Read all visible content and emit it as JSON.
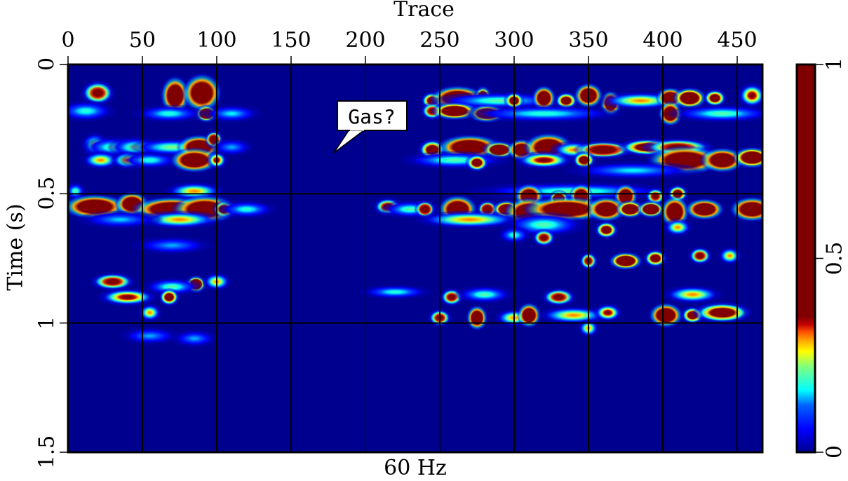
{
  "chart_data": {
    "type": "heatmap",
    "title": "Trace",
    "subtitle": "60 Hz",
    "xlabel": "Trace",
    "ylabel": "Time (s)",
    "xlim": [
      0,
      470
    ],
    "ylim": [
      0,
      1.5
    ],
    "x_ticks": [
      "0",
      "50",
      "100",
      "150",
      "200",
      "250",
      "300",
      "350",
      "400",
      "450"
    ],
    "y_ticks": [
      "0",
      "0.5",
      "1",
      "1.5"
    ],
    "grid": true,
    "colorbar": {
      "range": [
        0,
        1
      ],
      "ticks": [
        "0",
        "0.5",
        "1"
      ],
      "colormap": "jet (clipped ~0.35)",
      "stops": [
        {
          "pos": 0.0,
          "color": "#00008f"
        },
        {
          "pos": 0.06,
          "color": "#0000ff"
        },
        {
          "pos": 0.12,
          "color": "#0060ff"
        },
        {
          "pos": 0.16,
          "color": "#00ffff"
        },
        {
          "pos": 0.22,
          "color": "#7fff7f"
        },
        {
          "pos": 0.26,
          "color": "#ffff00"
        },
        {
          "pos": 0.29,
          "color": "#ffa000"
        },
        {
          "pos": 0.31,
          "color": "#ff5000"
        },
        {
          "pos": 0.33,
          "color": "#c00000"
        },
        {
          "pos": 0.35,
          "color": "#800000"
        },
        {
          "pos": 1.0,
          "color": "#800000"
        }
      ]
    },
    "annotation": {
      "text": "Gas?",
      "x_trace": 180,
      "time_s": 0.33
    },
    "blobs": [
      {
        "x": 20,
        "t": 0.11,
        "w": 10,
        "h": 0.03,
        "v": 0.5
      },
      {
        "x": 12,
        "t": 0.18,
        "w": 20,
        "h": 0.025,
        "v": 0.18
      },
      {
        "x": 18,
        "t": 0.31,
        "w": 8,
        "h": 0.03,
        "v": 0.25
      },
      {
        "x": 30,
        "t": 0.32,
        "w": 20,
        "h": 0.025,
        "v": 0.2
      },
      {
        "x": 45,
        "t": 0.32,
        "w": 18,
        "h": 0.025,
        "v": 0.22
      },
      {
        "x": 22,
        "t": 0.37,
        "w": 12,
        "h": 0.02,
        "v": 0.3
      },
      {
        "x": 40,
        "t": 0.37,
        "w": 10,
        "h": 0.02,
        "v": 0.32
      },
      {
        "x": 55,
        "t": 0.37,
        "w": 20,
        "h": 0.02,
        "v": 0.18
      },
      {
        "x": 72,
        "t": 0.12,
        "w": 8,
        "h": 0.05,
        "v": 1
      },
      {
        "x": 90,
        "t": 0.11,
        "w": 12,
        "h": 0.05,
        "v": 1
      },
      {
        "x": 93,
        "t": 0.19,
        "w": 6,
        "h": 0.02,
        "v": 0.8
      },
      {
        "x": 68,
        "t": 0.19,
        "w": 25,
        "h": 0.02,
        "v": 0.18
      },
      {
        "x": 110,
        "t": 0.19,
        "w": 20,
        "h": 0.02,
        "v": 0.16
      },
      {
        "x": 70,
        "t": 0.32,
        "w": 30,
        "h": 0.02,
        "v": 0.22
      },
      {
        "x": 88,
        "t": 0.32,
        "w": 14,
        "h": 0.03,
        "v": 1
      },
      {
        "x": 98,
        "t": 0.29,
        "w": 4,
        "h": 0.02,
        "v": 0.7
      },
      {
        "x": 85,
        "t": 0.37,
        "w": 16,
        "h": 0.03,
        "v": 1
      },
      {
        "x": 100,
        "t": 0.37,
        "w": 5,
        "h": 0.02,
        "v": 0.4
      },
      {
        "x": 110,
        "t": 0.32,
        "w": 14,
        "h": 0.02,
        "v": 0.14
      },
      {
        "x": 85,
        "t": 0.49,
        "w": 20,
        "h": 0.02,
        "v": 0.3
      },
      {
        "x": 5,
        "t": 0.49,
        "w": 5,
        "h": 0.02,
        "v": 0.2
      },
      {
        "x": 18,
        "t": 0.55,
        "w": 22,
        "h": 0.03,
        "v": 1
      },
      {
        "x": 43,
        "t": 0.54,
        "w": 10,
        "h": 0.03,
        "v": 1
      },
      {
        "x": 70,
        "t": 0.56,
        "w": 28,
        "h": 0.03,
        "v": 1
      },
      {
        "x": 92,
        "t": 0.56,
        "w": 22,
        "h": 0.035,
        "v": 1
      },
      {
        "x": 105,
        "t": 0.56,
        "w": 6,
        "h": 0.02,
        "v": 0.6
      },
      {
        "x": 120,
        "t": 0.56,
        "w": 20,
        "h": 0.02,
        "v": 0.18
      },
      {
        "x": 75,
        "t": 0.6,
        "w": 30,
        "h": 0.02,
        "v": 0.3
      },
      {
        "x": 35,
        "t": 0.6,
        "w": 30,
        "h": 0.02,
        "v": 0.15
      },
      {
        "x": 70,
        "t": 0.7,
        "w": 28,
        "h": 0.02,
        "v": 0.14
      },
      {
        "x": 30,
        "t": 0.84,
        "w": 14,
        "h": 0.02,
        "v": 0.5
      },
      {
        "x": 40,
        "t": 0.9,
        "w": 20,
        "h": 0.02,
        "v": 0.4
      },
      {
        "x": 86,
        "t": 0.85,
        "w": 5,
        "h": 0.02,
        "v": 0.8
      },
      {
        "x": 70,
        "t": 0.86,
        "w": 20,
        "h": 0.02,
        "v": 0.2
      },
      {
        "x": 68,
        "t": 0.9,
        "w": 5,
        "h": 0.02,
        "v": 0.6
      },
      {
        "x": 100,
        "t": 0.84,
        "w": 8,
        "h": 0.02,
        "v": 0.3
      },
      {
        "x": 55,
        "t": 0.96,
        "w": 6,
        "h": 0.02,
        "v": 0.3
      },
      {
        "x": 55,
        "t": 1.05,
        "w": 20,
        "h": 0.02,
        "v": 0.14
      },
      {
        "x": 85,
        "t": 1.06,
        "w": 15,
        "h": 0.02,
        "v": 0.14
      },
      {
        "x": 215,
        "t": 0.55,
        "w": 8,
        "h": 0.02,
        "v": 0.5
      },
      {
        "x": 230,
        "t": 0.56,
        "w": 20,
        "h": 0.02,
        "v": 0.2
      },
      {
        "x": 220,
        "t": 0.88,
        "w": 25,
        "h": 0.015,
        "v": 0.18
      },
      {
        "x": 245,
        "t": 0.14,
        "w": 6,
        "h": 0.02,
        "v": 0.6
      },
      {
        "x": 262,
        "t": 0.13,
        "w": 18,
        "h": 0.03,
        "v": 1
      },
      {
        "x": 279,
        "t": 0.13,
        "w": 4,
        "h": 0.03,
        "v": 0.8
      },
      {
        "x": 282,
        "t": 0.15,
        "w": 5,
        "h": 0.02,
        "v": 0.9
      },
      {
        "x": 290,
        "t": 0.14,
        "w": 50,
        "h": 0.02,
        "v": 0.2
      },
      {
        "x": 300,
        "t": 0.14,
        "w": 5,
        "h": 0.02,
        "v": 0.6
      },
      {
        "x": 320,
        "t": 0.13,
        "w": 6,
        "h": 0.03,
        "v": 1
      },
      {
        "x": 335,
        "t": 0.14,
        "w": 6,
        "h": 0.02,
        "v": 0.6
      },
      {
        "x": 350,
        "t": 0.12,
        "w": 8,
        "h": 0.03,
        "v": 1
      },
      {
        "x": 365,
        "t": 0.15,
        "w": 5,
        "h": 0.03,
        "v": 1
      },
      {
        "x": 385,
        "t": 0.14,
        "w": 30,
        "h": 0.02,
        "v": 0.3
      },
      {
        "x": 405,
        "t": 0.13,
        "w": 8,
        "h": 0.025,
        "v": 1
      },
      {
        "x": 418,
        "t": 0.13,
        "w": 10,
        "h": 0.025,
        "v": 0.9
      },
      {
        "x": 435,
        "t": 0.13,
        "w": 6,
        "h": 0.02,
        "v": 0.6
      },
      {
        "x": 460,
        "t": 0.12,
        "w": 8,
        "h": 0.03,
        "v": 0.4
      },
      {
        "x": 245,
        "t": 0.18,
        "w": 6,
        "h": 0.02,
        "v": 0.5
      },
      {
        "x": 260,
        "t": 0.18,
        "w": 15,
        "h": 0.02,
        "v": 0.9
      },
      {
        "x": 282,
        "t": 0.19,
        "w": 12,
        "h": 0.02,
        "v": 0.9
      },
      {
        "x": 320,
        "t": 0.19,
        "w": 60,
        "h": 0.02,
        "v": 0.18
      },
      {
        "x": 405,
        "t": 0.19,
        "w": 6,
        "h": 0.03,
        "v": 1
      },
      {
        "x": 440,
        "t": 0.19,
        "w": 40,
        "h": 0.02,
        "v": 0.2
      },
      {
        "x": 245,
        "t": 0.33,
        "w": 8,
        "h": 0.025,
        "v": 0.6
      },
      {
        "x": 270,
        "t": 0.32,
        "w": 22,
        "h": 0.03,
        "v": 1
      },
      {
        "x": 290,
        "t": 0.33,
        "w": 10,
        "h": 0.02,
        "v": 0.8
      },
      {
        "x": 305,
        "t": 0.33,
        "w": 8,
        "h": 0.025,
        "v": 1
      },
      {
        "x": 323,
        "t": 0.32,
        "w": 16,
        "h": 0.035,
        "v": 1
      },
      {
        "x": 340,
        "t": 0.33,
        "w": 15,
        "h": 0.02,
        "v": 0.3
      },
      {
        "x": 360,
        "t": 0.33,
        "w": 20,
        "h": 0.02,
        "v": 0.7
      },
      {
        "x": 390,
        "t": 0.32,
        "w": 20,
        "h": 0.02,
        "v": 0.6
      },
      {
        "x": 410,
        "t": 0.32,
        "w": 25,
        "h": 0.02,
        "v": 0.5
      },
      {
        "x": 260,
        "t": 0.37,
        "w": 40,
        "h": 0.02,
        "v": 0.2
      },
      {
        "x": 275,
        "t": 0.38,
        "w": 6,
        "h": 0.02,
        "v": 0.6
      },
      {
        "x": 320,
        "t": 0.37,
        "w": 20,
        "h": 0.02,
        "v": 0.4
      },
      {
        "x": 347,
        "t": 0.37,
        "w": 6,
        "h": 0.02,
        "v": 0.6
      },
      {
        "x": 415,
        "t": 0.37,
        "w": 26,
        "h": 0.035,
        "v": 1
      },
      {
        "x": 440,
        "t": 0.37,
        "w": 14,
        "h": 0.03,
        "v": 1
      },
      {
        "x": 460,
        "t": 0.36,
        "w": 12,
        "h": 0.025,
        "v": 0.9
      },
      {
        "x": 380,
        "t": 0.41,
        "w": 50,
        "h": 0.02,
        "v": 0.16
      },
      {
        "x": 340,
        "t": 0.49,
        "w": 80,
        "h": 0.02,
        "v": 0.2
      },
      {
        "x": 310,
        "t": 0.51,
        "w": 8,
        "h": 0.03,
        "v": 1
      },
      {
        "x": 330,
        "t": 0.52,
        "w": 5,
        "h": 0.02,
        "v": 0.8
      },
      {
        "x": 345,
        "t": 0.51,
        "w": 6,
        "h": 0.03,
        "v": 1
      },
      {
        "x": 375,
        "t": 0.51,
        "w": 6,
        "h": 0.03,
        "v": 1
      },
      {
        "x": 395,
        "t": 0.51,
        "w": 5,
        "h": 0.02,
        "v": 0.5
      },
      {
        "x": 410,
        "t": 0.5,
        "w": 5,
        "h": 0.02,
        "v": 0.6
      },
      {
        "x": 240,
        "t": 0.56,
        "w": 5,
        "h": 0.02,
        "v": 0.7
      },
      {
        "x": 262,
        "t": 0.56,
        "w": 12,
        "h": 0.035,
        "v": 1
      },
      {
        "x": 282,
        "t": 0.56,
        "w": 5,
        "h": 0.02,
        "v": 0.7
      },
      {
        "x": 295,
        "t": 0.56,
        "w": 8,
        "h": 0.02,
        "v": 0.9
      },
      {
        "x": 310,
        "t": 0.57,
        "w": 16,
        "h": 0.035,
        "v": 1
      },
      {
        "x": 335,
        "t": 0.56,
        "w": 30,
        "h": 0.03,
        "v": 1
      },
      {
        "x": 362,
        "t": 0.56,
        "w": 12,
        "h": 0.03,
        "v": 1
      },
      {
        "x": 378,
        "t": 0.56,
        "w": 8,
        "h": 0.02,
        "v": 0.9
      },
      {
        "x": 392,
        "t": 0.56,
        "w": 8,
        "h": 0.02,
        "v": 0.8
      },
      {
        "x": 408,
        "t": 0.57,
        "w": 8,
        "h": 0.04,
        "v": 1
      },
      {
        "x": 428,
        "t": 0.56,
        "w": 12,
        "h": 0.025,
        "v": 1
      },
      {
        "x": 460,
        "t": 0.56,
        "w": 14,
        "h": 0.03,
        "v": 1
      },
      {
        "x": 270,
        "t": 0.6,
        "w": 40,
        "h": 0.02,
        "v": 0.3
      },
      {
        "x": 320,
        "t": 0.62,
        "w": 30,
        "h": 0.03,
        "v": 0.2
      },
      {
        "x": 362,
        "t": 0.64,
        "w": 6,
        "h": 0.02,
        "v": 0.6
      },
      {
        "x": 410,
        "t": 0.63,
        "w": 8,
        "h": 0.02,
        "v": 0.3
      },
      {
        "x": 300,
        "t": 0.66,
        "w": 10,
        "h": 0.02,
        "v": 0.18
      },
      {
        "x": 320,
        "t": 0.67,
        "w": 6,
        "h": 0.02,
        "v": 0.5
      },
      {
        "x": 375,
        "t": 0.76,
        "w": 10,
        "h": 0.02,
        "v": 0.9
      },
      {
        "x": 395,
        "t": 0.75,
        "w": 6,
        "h": 0.02,
        "v": 0.6
      },
      {
        "x": 350,
        "t": 0.76,
        "w": 4,
        "h": 0.02,
        "v": 0.5
      },
      {
        "x": 425,
        "t": 0.74,
        "w": 6,
        "h": 0.02,
        "v": 0.5
      },
      {
        "x": 445,
        "t": 0.74,
        "w": 6,
        "h": 0.02,
        "v": 0.3
      },
      {
        "x": 258,
        "t": 0.9,
        "w": 6,
        "h": 0.02,
        "v": 0.5
      },
      {
        "x": 280,
        "t": 0.89,
        "w": 20,
        "h": 0.02,
        "v": 0.2
      },
      {
        "x": 330,
        "t": 0.9,
        "w": 10,
        "h": 0.02,
        "v": 0.5
      },
      {
        "x": 420,
        "t": 0.89,
        "w": 20,
        "h": 0.02,
        "v": 0.3
      },
      {
        "x": 250,
        "t": 0.98,
        "w": 6,
        "h": 0.02,
        "v": 0.5
      },
      {
        "x": 275,
        "t": 0.98,
        "w": 5,
        "h": 0.03,
        "v": 1
      },
      {
        "x": 300,
        "t": 0.98,
        "w": 12,
        "h": 0.02,
        "v": 0.3
      },
      {
        "x": 310,
        "t": 0.97,
        "w": 6,
        "h": 0.03,
        "v": 1
      },
      {
        "x": 340,
        "t": 0.97,
        "w": 25,
        "h": 0.02,
        "v": 0.3
      },
      {
        "x": 363,
        "t": 0.96,
        "w": 8,
        "h": 0.02,
        "v": 0.4
      },
      {
        "x": 402,
        "t": 0.97,
        "w": 10,
        "h": 0.03,
        "v": 1
      },
      {
        "x": 420,
        "t": 0.97,
        "w": 6,
        "h": 0.02,
        "v": 0.6
      },
      {
        "x": 440,
        "t": 0.96,
        "w": 20,
        "h": 0.025,
        "v": 0.6
      },
      {
        "x": 350,
        "t": 1.02,
        "w": 5,
        "h": 0.02,
        "v": 0.3
      }
    ]
  },
  "axes": {
    "top_title": "Trace",
    "bottom_label": "60 Hz",
    "y_label": "Time (s)",
    "annotation_text": "Gas?"
  }
}
